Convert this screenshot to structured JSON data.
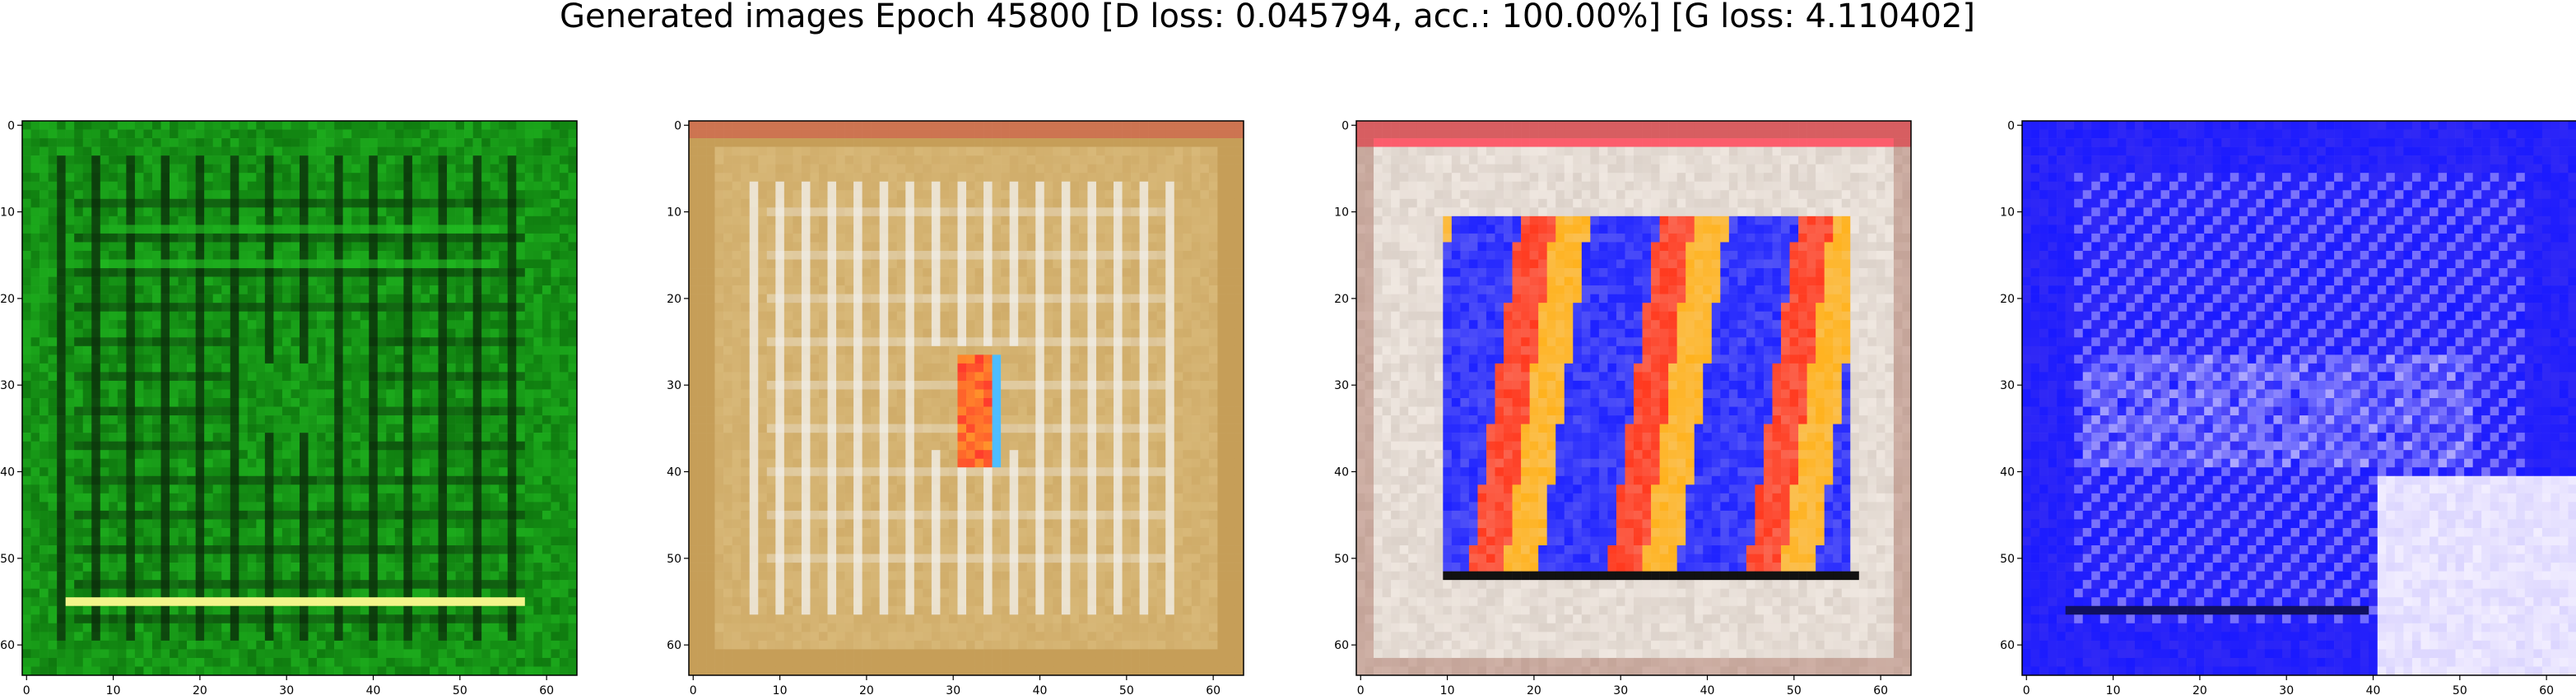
{
  "figure": {
    "suptitle": "Generated images Epoch 45800 [D loss: 0.045794, acc.: 100.00%] [G loss: 4.110402]"
  },
  "axes": {
    "x_ticks": [
      "0",
      "10",
      "20",
      "30",
      "40",
      "50",
      "60"
    ],
    "y_ticks": [
      "0",
      "10",
      "20",
      "30",
      "40",
      "50",
      "60"
    ],
    "tick_values": [
      0,
      10,
      20,
      30,
      40,
      50,
      60
    ],
    "image_range": [
      -0.5,
      63.5
    ]
  },
  "panels": [
    {
      "name": "generated-image-1",
      "dominant_colors": [
        "#0f7a0f",
        "#23c423",
        "#0a2a0a",
        "#f2f58a"
      ]
    },
    {
      "name": "generated-image-2",
      "dominant_colors": [
        "#d8b878",
        "#f3f2ef",
        "#b8893d",
        "#ff3b2c",
        "#4dbdff"
      ]
    },
    {
      "name": "generated-image-3",
      "dominant_colors": [
        "#efe7e0",
        "#1e22ff",
        "#ff3a1f",
        "#ffb21e",
        "#111111"
      ]
    },
    {
      "name": "generated-image-4",
      "dominant_colors": [
        "#1a1aff",
        "#3c30f0",
        "#f2eeff",
        "#b9b0ff",
        "#101060"
      ]
    }
  ]
}
